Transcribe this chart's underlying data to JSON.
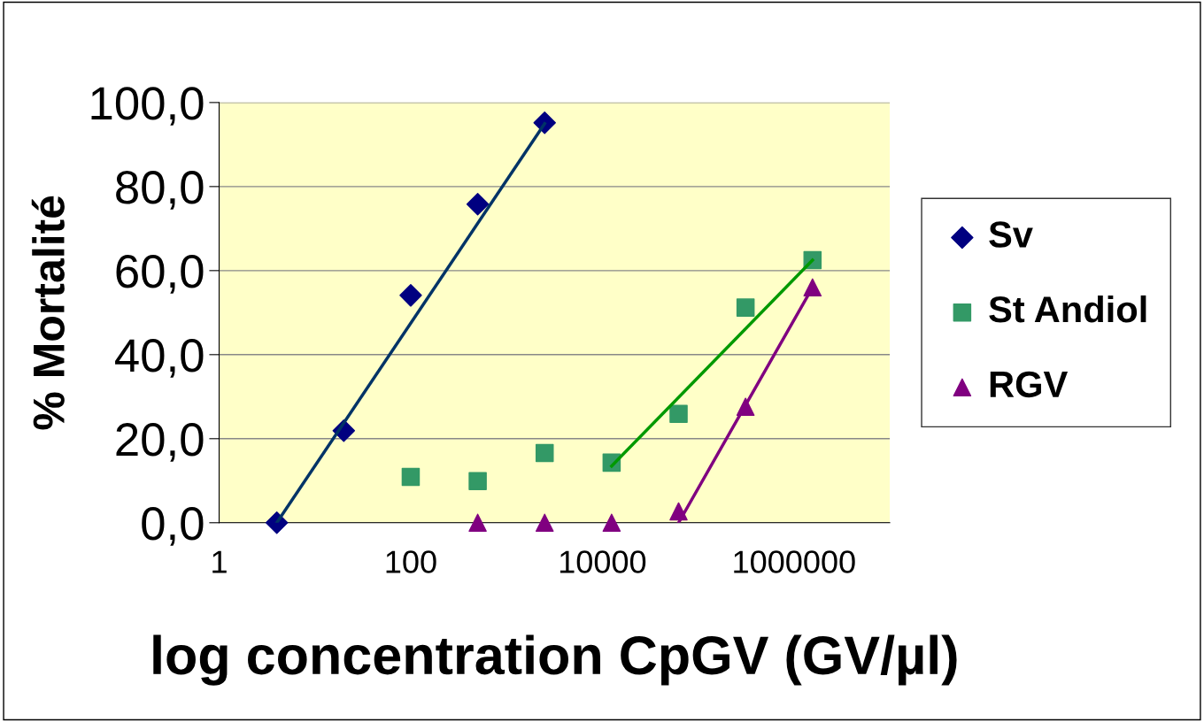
{
  "chart_data": {
    "type": "scatter",
    "xlabel": "log concentration CpGV (GV/µl)",
    "ylabel": "% Mortalité",
    "log": "x",
    "xlim": [
      1,
      10000000
    ],
    "xticks": [
      1,
      100,
      10000,
      1000000
    ],
    "ylim": [
      0,
      100
    ],
    "yticks": [
      {
        "value": 0,
        "label": "0,0"
      },
      {
        "value": 20,
        "label": "20,0"
      },
      {
        "value": 40,
        "label": "40,0"
      },
      {
        "value": 60,
        "label": "60,0"
      },
      {
        "value": 80,
        "label": "80,0"
      },
      {
        "value": 100,
        "label": "100,0"
      }
    ],
    "grid": "y",
    "legend": "right",
    "series": [
      {
        "name": "Sv",
        "marker": "diamond",
        "color": "#000080",
        "x": [
          4,
          20,
          100,
          500,
          2500
        ],
        "values": [
          0,
          21.9,
          54.1,
          75.8,
          95.2
        ]
      },
      {
        "name": "St Andiol",
        "marker": "square",
        "color": "#339966",
        "x": [
          100,
          500,
          2500,
          12500,
          62500,
          312500,
          1562500
        ],
        "values": [
          10.9,
          9.9,
          16.6,
          14.3,
          25.9,
          51.2,
          62.5
        ]
      },
      {
        "name": "RGV",
        "marker": "triangle",
        "color": "#800080",
        "x": [
          500,
          2500,
          12500,
          62500,
          312500,
          1562500
        ],
        "values": [
          0,
          0,
          0,
          2.7,
          27.6,
          56.0
        ]
      },
      {
        "type": "line",
        "marker": "none",
        "color": "#003366",
        "x": [
          4,
          2500
        ],
        "values": [
          0,
          95
        ]
      },
      {
        "type": "line",
        "marker": "none",
        "color": "#009900",
        "x": [
          12500,
          1562500
        ],
        "values": [
          13.5,
          62.5
        ]
      },
      {
        "type": "line",
        "marker": "none",
        "color": "#800080",
        "x": [
          62500,
          1562500
        ],
        "values": [
          0,
          56
        ]
      }
    ]
  }
}
